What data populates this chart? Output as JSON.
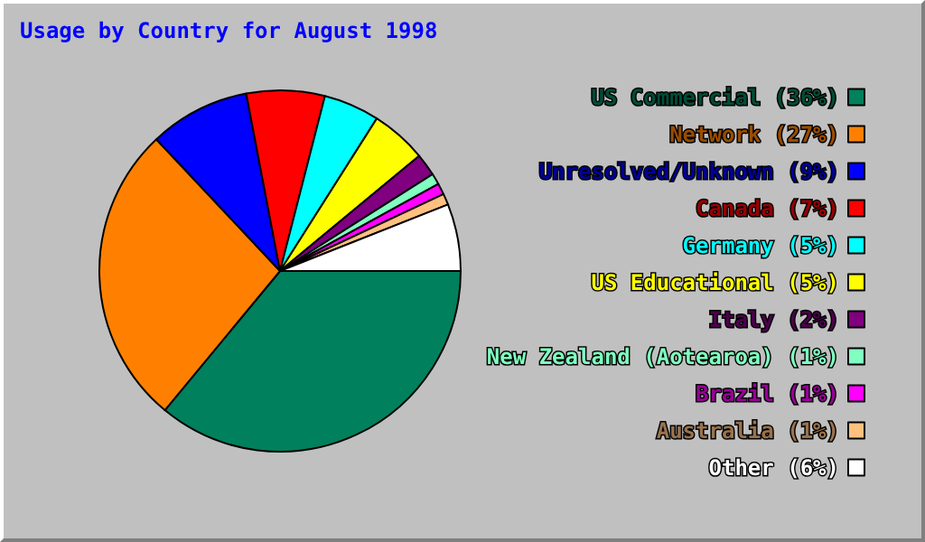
{
  "chart_data": {
    "type": "pie",
    "title": "Usage by Country for August 1998",
    "categories": [
      "US Commercial (36%)",
      "Network (27%)",
      "Unresolved/Unknown (9%)",
      "Canada (7%)",
      "Germany (5%)",
      "US Educational (5%)",
      "Italy (2%)",
      "New Zealand (Aotearoa) (1%)",
      "Brazil (1%)",
      "Australia (1%)",
      "Other (6%)"
    ],
    "values": [
      36,
      27,
      9,
      7,
      5,
      5,
      2,
      1,
      1,
      1,
      6
    ],
    "colors": [
      "#00805c",
      "#ff8000",
      "#0000ff",
      "#ff0000",
      "#00ffff",
      "#ffff00",
      "#800080",
      "#80ffc0",
      "#ff00ff",
      "#ffc080",
      "#ffffff"
    ],
    "legend": "right"
  }
}
